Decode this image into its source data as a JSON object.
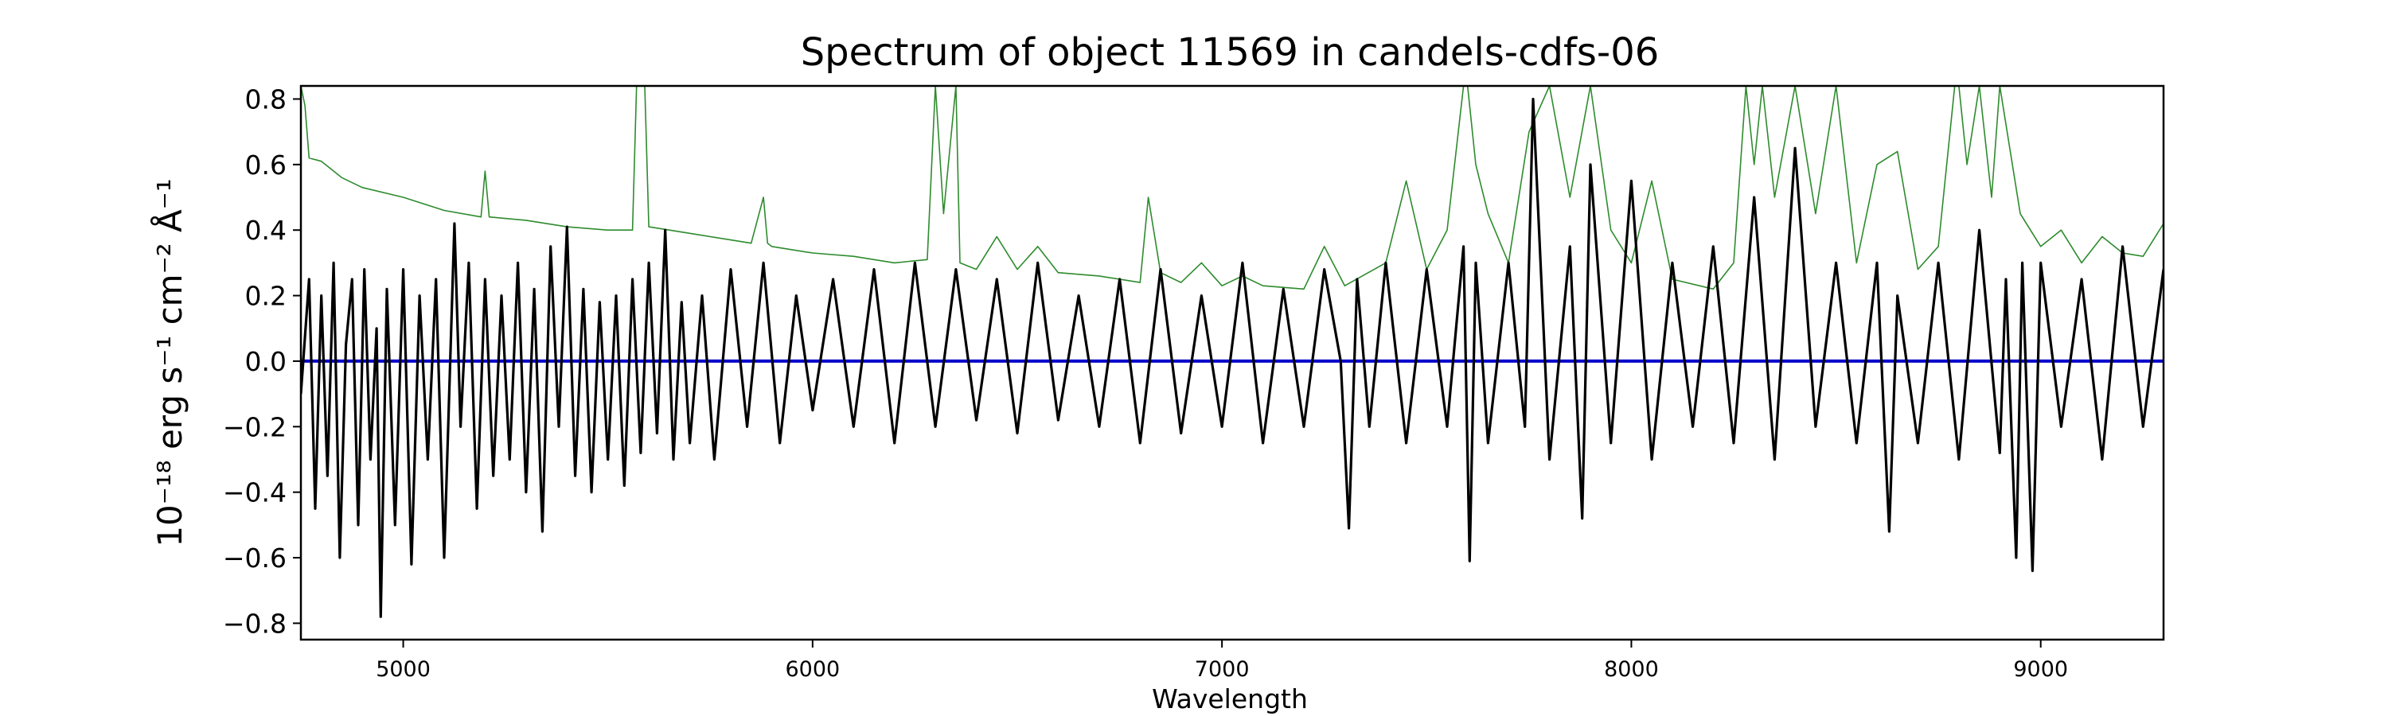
{
  "chart_data": {
    "type": "line",
    "title": "Spectrum of object 11569 in candels-cdfs-06",
    "xlabel": "Wavelength",
    "ylabel": "10⁻¹⁸ erg s⁻¹ cm⁻² Å⁻¹",
    "xlim": [
      4750,
      9300
    ],
    "ylim": [
      -0.85,
      0.84
    ],
    "xticks": [
      5000,
      6000,
      7000,
      8000,
      9000
    ],
    "yticks": [
      -0.8,
      -0.6,
      -0.4,
      -0.2,
      0.0,
      0.2,
      0.4,
      0.6,
      0.8
    ],
    "ytick_labels": [
      "−0.8",
      "−0.6",
      "−0.4",
      "−0.2",
      "0.0",
      "0.2",
      "0.4",
      "0.6",
      "0.8"
    ],
    "grid": false,
    "colors": {
      "flux": "#000000",
      "error": "#2e8b2e",
      "zero": "#0000cc"
    },
    "series": [
      {
        "role": "flux",
        "x": [
          4750,
          4770,
          4785,
          4800,
          4815,
          4830,
          4845,
          4860,
          4875,
          4890,
          4905,
          4920,
          4935,
          4945,
          4960,
          4980,
          5000,
          5020,
          5040,
          5060,
          5080,
          5100,
          5125,
          5140,
          5160,
          5180,
          5200,
          5220,
          5240,
          5260,
          5280,
          5300,
          5320,
          5340,
          5360,
          5380,
          5400,
          5420,
          5440,
          5460,
          5480,
          5500,
          5520,
          5540,
          5560,
          5580,
          5600,
          5620,
          5640,
          5660,
          5680,
          5700,
          5730,
          5760,
          5800,
          5840,
          5880,
          5920,
          5960,
          6000,
          6050,
          6100,
          6150,
          6200,
          6250,
          6300,
          6350,
          6400,
          6450,
          6500,
          6550,
          6600,
          6650,
          6700,
          6750,
          6800,
          6850,
          6900,
          6950,
          7000,
          7050,
          7100,
          7150,
          7200,
          7250,
          7290,
          7310,
          7330,
          7360,
          7400,
          7450,
          7500,
          7550,
          7590,
          7605,
          7620,
          7650,
          7700,
          7740,
          7760,
          7800,
          7850,
          7880,
          7900,
          7950,
          8000,
          8050,
          8100,
          8150,
          8200,
          8250,
          8300,
          8350,
          8400,
          8450,
          8500,
          8550,
          8600,
          8630,
          8650,
          8700,
          8750,
          8800,
          8850,
          8900,
          8915,
          8940,
          8955,
          8980,
          9000,
          9050,
          9100,
          9150,
          9200,
          9250,
          9300
        ],
        "y": [
          -0.1,
          0.25,
          -0.45,
          0.2,
          -0.35,
          0.3,
          -0.6,
          0.05,
          0.25,
          -0.5,
          0.28,
          -0.3,
          0.1,
          -0.78,
          0.22,
          -0.5,
          0.28,
          -0.62,
          0.2,
          -0.3,
          0.25,
          -0.6,
          0.42,
          -0.2,
          0.3,
          -0.45,
          0.25,
          -0.35,
          0.2,
          -0.3,
          0.3,
          -0.4,
          0.22,
          -0.52,
          0.35,
          -0.2,
          0.41,
          -0.35,
          0.22,
          -0.4,
          0.18,
          -0.3,
          0.2,
          -0.38,
          0.25,
          -0.28,
          0.3,
          -0.22,
          0.4,
          -0.3,
          0.18,
          -0.25,
          0.2,
          -0.3,
          0.28,
          -0.2,
          0.3,
          -0.25,
          0.2,
          -0.15,
          0.25,
          -0.2,
          0.28,
          -0.25,
          0.3,
          -0.2,
          0.28,
          -0.18,
          0.25,
          -0.22,
          0.3,
          -0.18,
          0.2,
          -0.2,
          0.25,
          -0.25,
          0.28,
          -0.22,
          0.2,
          -0.2,
          0.3,
          -0.25,
          0.22,
          -0.2,
          0.28,
          0.0,
          -0.51,
          0.25,
          -0.2,
          0.3,
          -0.25,
          0.28,
          -0.2,
          0.35,
          -0.61,
          0.3,
          -0.25,
          0.3,
          -0.2,
          0.8,
          -0.3,
          0.35,
          -0.48,
          0.6,
          -0.25,
          0.55,
          -0.3,
          0.3,
          -0.2,
          0.35,
          -0.25,
          0.5,
          -0.3,
          0.65,
          -0.2,
          0.3,
          -0.25,
          0.3,
          -0.52,
          0.2,
          -0.25,
          0.3,
          -0.3,
          0.4,
          -0.28,
          0.25,
          -0.6,
          0.3,
          -0.64,
          0.3,
          -0.2,
          0.25,
          -0.3,
          0.35,
          -0.2,
          0.28
        ]
      },
      {
        "role": "error",
        "x": [
          4750,
          4760,
          4770,
          4800,
          4850,
          4900,
          5000,
          5100,
          5190,
          5200,
          5210,
          5300,
          5400,
          5500,
          5560,
          5570,
          5580,
          5590,
          5600,
          5700,
          5800,
          5850,
          5880,
          5890,
          5900,
          5950,
          6000,
          6100,
          6200,
          6280,
          6300,
          6320,
          6350,
          6360,
          6380,
          6400,
          6450,
          6500,
          6550,
          6600,
          6700,
          6800,
          6820,
          6850,
          6900,
          6950,
          7000,
          7050,
          7100,
          7200,
          7250,
          7300,
          7400,
          7450,
          7500,
          7550,
          7590,
          7600,
          7620,
          7650,
          7700,
          7750,
          7800,
          7850,
          7900,
          7950,
          8000,
          8050,
          8100,
          8200,
          8250,
          8280,
          8300,
          8320,
          8350,
          8400,
          8450,
          8500,
          8550,
          8600,
          8650,
          8700,
          8750,
          8790,
          8800,
          8820,
          8850,
          8880,
          8900,
          8950,
          9000,
          9050,
          9100,
          9150,
          9200,
          9250,
          9300
        ],
        "y": [
          0.84,
          0.78,
          0.62,
          0.61,
          0.56,
          0.53,
          0.5,
          0.46,
          0.44,
          0.58,
          0.44,
          0.43,
          0.41,
          0.4,
          0.4,
          0.84,
          0.84,
          0.84,
          0.41,
          0.39,
          0.37,
          0.36,
          0.5,
          0.36,
          0.35,
          0.34,
          0.33,
          0.32,
          0.3,
          0.31,
          0.84,
          0.45,
          0.84,
          0.3,
          0.29,
          0.28,
          0.38,
          0.28,
          0.35,
          0.27,
          0.26,
          0.24,
          0.5,
          0.27,
          0.24,
          0.3,
          0.23,
          0.26,
          0.23,
          0.22,
          0.35,
          0.23,
          0.3,
          0.55,
          0.28,
          0.4,
          0.84,
          0.84,
          0.6,
          0.45,
          0.3,
          0.7,
          0.84,
          0.5,
          0.84,
          0.4,
          0.3,
          0.55,
          0.25,
          0.22,
          0.3,
          0.84,
          0.6,
          0.84,
          0.5,
          0.84,
          0.45,
          0.84,
          0.3,
          0.6,
          0.64,
          0.28,
          0.35,
          0.84,
          0.84,
          0.6,
          0.84,
          0.5,
          0.84,
          0.45,
          0.35,
          0.4,
          0.3,
          0.38,
          0.33,
          0.32,
          0.42
        ]
      },
      {
        "role": "zero",
        "x": [
          4750,
          9300
        ],
        "y": [
          0.0,
          0.0
        ]
      }
    ]
  }
}
